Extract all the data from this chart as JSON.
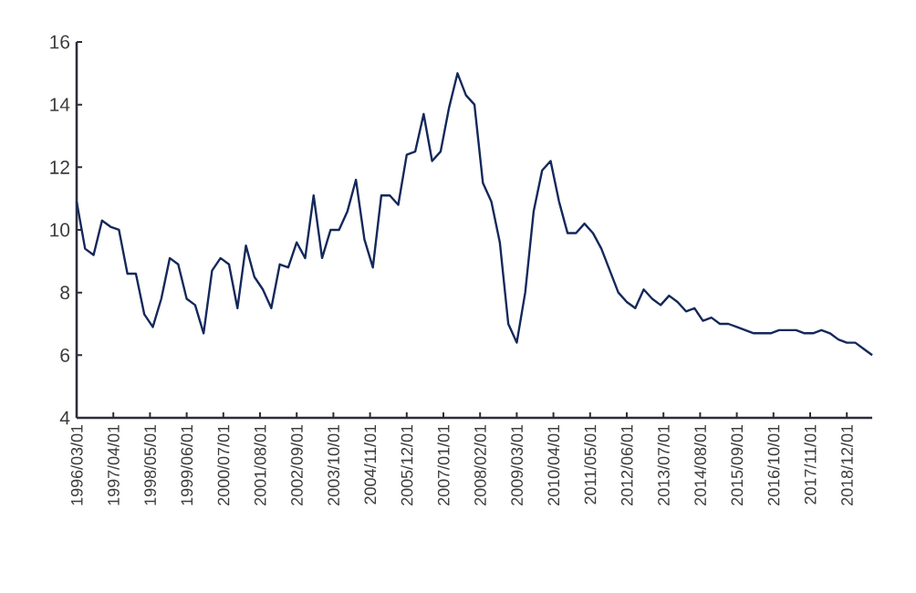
{
  "chart_data": {
    "type": "line",
    "x": [
      "1996-03-01",
      "1996-06-01",
      "1996-09-01",
      "1996-12-01",
      "1997-03-01",
      "1997-06-01",
      "1997-09-01",
      "1997-12-01",
      "1998-03-01",
      "1998-06-01",
      "1998-09-01",
      "1998-12-01",
      "1999-03-01",
      "1999-06-01",
      "1999-09-01",
      "1999-12-01",
      "2000-03-01",
      "2000-06-01",
      "2000-09-01",
      "2000-12-01",
      "2001-03-01",
      "2001-06-01",
      "2001-09-01",
      "2001-12-01",
      "2002-03-01",
      "2002-06-01",
      "2002-09-01",
      "2002-12-01",
      "2003-03-01",
      "2003-06-01",
      "2003-09-01",
      "2003-12-01",
      "2004-03-01",
      "2004-06-01",
      "2004-09-01",
      "2004-12-01",
      "2005-03-01",
      "2005-06-01",
      "2005-09-01",
      "2005-12-01",
      "2006-03-01",
      "2006-06-01",
      "2006-09-01",
      "2006-12-01",
      "2007-03-01",
      "2007-06-01",
      "2007-09-01",
      "2007-12-01",
      "2008-03-01",
      "2008-06-01",
      "2008-09-01",
      "2008-12-01",
      "2009-03-01",
      "2009-06-01",
      "2009-09-01",
      "2009-12-01",
      "2010-03-01",
      "2010-06-01",
      "2010-09-01",
      "2010-12-01",
      "2011-03-01",
      "2011-06-01",
      "2011-09-01",
      "2011-12-01",
      "2012-03-01",
      "2012-06-01",
      "2012-09-01",
      "2012-12-01",
      "2013-03-01",
      "2013-06-01",
      "2013-09-01",
      "2013-12-01",
      "2014-03-01",
      "2014-06-01",
      "2014-09-01",
      "2014-12-01",
      "2015-03-01",
      "2015-06-01",
      "2015-09-01",
      "2015-12-01",
      "2016-03-01",
      "2016-06-01",
      "2016-09-01",
      "2016-12-01",
      "2017-03-01",
      "2017-06-01",
      "2017-09-01",
      "2017-12-01",
      "2018-03-01",
      "2018-06-01",
      "2018-09-01",
      "2018-12-01",
      "2019-03-01",
      "2019-06-01",
      "2019-09-01"
    ],
    "series": [
      {
        "color": "#14285a",
        "values": [
          10.9,
          9.4,
          9.2,
          10.3,
          10.1,
          10.0,
          8.6,
          8.6,
          7.3,
          6.9,
          7.8,
          9.1,
          8.9,
          7.8,
          7.6,
          6.7,
          8.7,
          9.1,
          8.9,
          7.5,
          9.5,
          8.5,
          8.1,
          7.5,
          8.9,
          8.8,
          9.6,
          9.1,
          11.1,
          9.1,
          10.0,
          10.0,
          10.6,
          11.6,
          9.7,
          8.8,
          11.1,
          11.1,
          10.8,
          12.4,
          12.5,
          13.7,
          12.2,
          12.5,
          13.9,
          15.0,
          14.3,
          14.0,
          11.5,
          10.9,
          9.6,
          7.0,
          6.4,
          8.0,
          10.6,
          11.9,
          12.2,
          10.9,
          9.9,
          9.9,
          10.2,
          9.9,
          9.4,
          8.7,
          8.0,
          7.7,
          7.5,
          8.1,
          7.8,
          7.6,
          7.9,
          7.7,
          7.4,
          7.5,
          7.1,
          7.2,
          7.0,
          7.0,
          6.9,
          6.8,
          6.7,
          6.7,
          6.7,
          6.8,
          6.8,
          6.8,
          6.7,
          6.7,
          6.8,
          6.7,
          6.5,
          6.4,
          6.4,
          6.2,
          6.0
        ]
      }
    ],
    "xlim": [
      "1996-03-01",
      "2019-09-01"
    ],
    "xticks": [
      {
        "value": "1996-03-01",
        "label": "1996/03/01"
      },
      {
        "value": "1997-04-01",
        "label": "1997/04/01"
      },
      {
        "value": "1998-05-01",
        "label": "1998/05/01"
      },
      {
        "value": "1999-06-01",
        "label": "1999/06/01"
      },
      {
        "value": "2000-07-01",
        "label": "2000/07/01"
      },
      {
        "value": "2001-08-01",
        "label": "2001/08/01"
      },
      {
        "value": "2002-09-01",
        "label": "2002/09/01"
      },
      {
        "value": "2003-10-01",
        "label": "2003/10/01"
      },
      {
        "value": "2004-11-01",
        "label": "2004/11/01"
      },
      {
        "value": "2005-12-01",
        "label": "2005/12/01"
      },
      {
        "value": "2007-01-01",
        "label": "2007/01/01"
      },
      {
        "value": "2008-02-01",
        "label": "2008/02/01"
      },
      {
        "value": "2009-03-01",
        "label": "2009/03/01"
      },
      {
        "value": "2010-04-01",
        "label": "2010/04/01"
      },
      {
        "value": "2011-05-01",
        "label": "2011/05/01"
      },
      {
        "value": "2012-06-01",
        "label": "2012/06/01"
      },
      {
        "value": "2013-07-01",
        "label": "2013/07/01"
      },
      {
        "value": "2014-08-01",
        "label": "2014/08/01"
      },
      {
        "value": "2015-09-01",
        "label": "2015/09/01"
      },
      {
        "value": "2016-10-01",
        "label": "2016/10/01"
      },
      {
        "value": "2017-11-01",
        "label": "2017/11/01"
      },
      {
        "value": "2018-12-01",
        "label": "2018/12/01"
      }
    ],
    "ylim": [
      4,
      16
    ],
    "yticks": [
      4,
      6,
      8,
      10,
      12,
      14,
      16
    ],
    "grid": false,
    "marker": "none",
    "line_style": "solid"
  }
}
